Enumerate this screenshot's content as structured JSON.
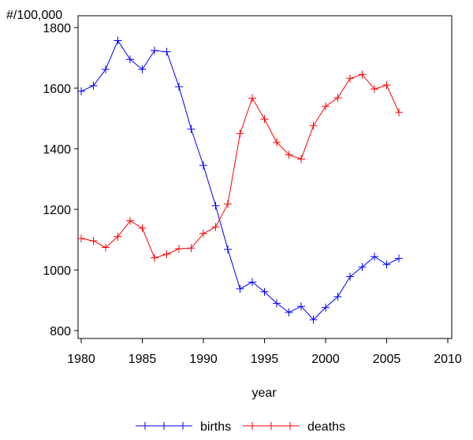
{
  "chart_data": {
    "type": "line",
    "ylabel": "#/100,000",
    "xlabel": "year",
    "xlim": [
      1980,
      2010
    ],
    "ylim": [
      770,
      1810
    ],
    "x_ticks": [
      1980,
      1985,
      1990,
      1995,
      2000,
      2005,
      2010
    ],
    "y_ticks": [
      800,
      1000,
      1200,
      1400,
      1600,
      1800
    ],
    "grid": false,
    "legend_position": "bottom",
    "marker": "plus",
    "series": [
      {
        "name": "births",
        "color": "#0000ff",
        "x": [
          1980,
          1981,
          1982,
          1983,
          1984,
          1985,
          1986,
          1987,
          1988,
          1989,
          1990,
          1991,
          1992,
          1993,
          1994,
          1995,
          1996,
          1997,
          1998,
          1999,
          2000,
          2001,
          2002,
          2003,
          2004,
          2005,
          2006
        ],
        "values": [
          1590,
          1608,
          1662,
          1757,
          1695,
          1662,
          1724,
          1720,
          1605,
          1465,
          1345,
          1212,
          1068,
          938,
          960,
          928,
          890,
          860,
          880,
          836,
          876,
          912,
          978,
          1010,
          1044,
          1018,
          1038
        ]
      },
      {
        "name": "deaths",
        "color": "#ff0000",
        "x": [
          1980,
          1981,
          1982,
          1983,
          1984,
          1985,
          1986,
          1987,
          1988,
          1989,
          1990,
          1991,
          1992,
          1993,
          1994,
          1995,
          1996,
          1997,
          1998,
          1999,
          2000,
          2001,
          2002,
          2003,
          2004,
          2005,
          2006
        ],
        "values": [
          1104,
          1096,
          1074,
          1110,
          1162,
          1138,
          1040,
          1052,
          1070,
          1072,
          1120,
          1142,
          1218,
          1450,
          1567,
          1498,
          1421,
          1380,
          1366,
          1476,
          1540,
          1568,
          1632,
          1645,
          1597,
          1610,
          1520
        ]
      }
    ]
  }
}
